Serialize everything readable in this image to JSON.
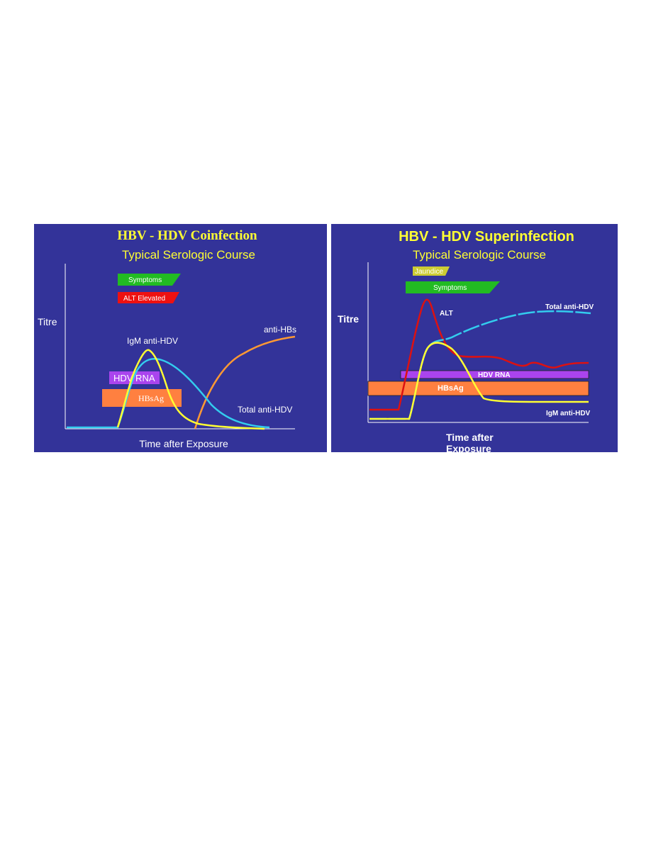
{
  "left": {
    "title": "HBV - HDV Coinfection",
    "subtitle": "Typical Serologic Course",
    "y_label": "Titre",
    "x_label": "Time after Exposure",
    "badges": {
      "symptoms": "Symptoms",
      "alt": "ALT Elevated"
    },
    "bars": {
      "hdv_rna": "HDV  RNA",
      "hbsag": "HBsAg"
    },
    "curve_labels": {
      "igm_anti_hdv": "IgM anti-HDV",
      "anti_hbs": "anti-HBs",
      "total_anti_hdv": "Total anti-HDV"
    }
  },
  "right": {
    "title": "HBV - HDV Superinfection",
    "subtitle": "Typical Serologic Course",
    "y_label": "Titre",
    "x_label_line1": "Time after",
    "x_label_line2": "Exposure",
    "badges": {
      "jaundice": "Jaundice",
      "symptoms": "Symptoms"
    },
    "bars": {
      "hdv_rna": "HDV RNA",
      "hbsag": "HBsAg"
    },
    "curve_labels": {
      "alt": "ALT",
      "total_anti_hdv": "Total anti-HDV",
      "igm_anti_hdv": "IgM anti-HDV"
    }
  },
  "colors": {
    "background": "#333399",
    "title": "#ffff33",
    "igm_curve": "#ffff33",
    "total_anti_hdv_curve": "#33ccee",
    "anti_hbs_curve": "#ff9933",
    "alt_curve": "#dd1111",
    "symptoms": "#22bb22",
    "alt_badge": "#ee1111",
    "jaundice": "#cccc33",
    "hdv_rna": "#aa44ee",
    "hbsag": "#ff8040"
  }
}
